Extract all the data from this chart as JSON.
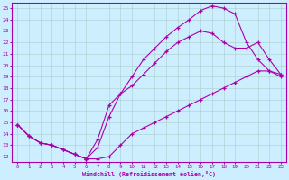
{
  "xlabel": "Windchill (Refroidissement éolien,°C)",
  "bg_color": "#cceeff",
  "line_color": "#aa00aa",
  "grid_color": "#aacccc",
  "xlim": [
    -0.5,
    23.5
  ],
  "ylim": [
    11.5,
    25.5
  ],
  "xticks": [
    0,
    1,
    2,
    3,
    4,
    5,
    6,
    7,
    8,
    9,
    10,
    11,
    12,
    13,
    14,
    15,
    16,
    17,
    18,
    19,
    20,
    21,
    22,
    23
  ],
  "yticks": [
    12,
    13,
    14,
    15,
    16,
    17,
    18,
    19,
    20,
    21,
    22,
    23,
    24,
    25
  ],
  "line1_x": [
    0,
    1,
    2,
    3,
    4,
    5,
    6,
    7,
    8,
    9,
    10,
    11,
    12,
    13,
    14,
    15,
    16,
    17,
    18,
    19,
    20,
    21,
    22,
    23
  ],
  "line1_y": [
    14.8,
    13.8,
    13.2,
    13.0,
    12.6,
    12.2,
    11.8,
    12.8,
    15.5,
    17.5,
    19.0,
    20.5,
    21.5,
    22.5,
    23.3,
    24.0,
    24.8,
    25.2,
    25.0,
    24.5,
    22.0,
    20.5,
    19.5,
    19.0
  ],
  "line2_x": [
    0,
    1,
    2,
    3,
    4,
    5,
    6,
    7,
    8,
    9,
    10,
    11,
    12,
    13,
    14,
    15,
    16,
    17,
    18,
    19,
    20,
    21,
    22,
    23
  ],
  "line2_y": [
    14.8,
    13.8,
    13.2,
    13.0,
    12.6,
    12.2,
    11.8,
    13.5,
    16.5,
    17.5,
    18.2,
    19.2,
    20.2,
    21.2,
    22.0,
    22.5,
    23.0,
    22.8,
    22.0,
    21.5,
    21.5,
    22.0,
    20.5,
    19.2
  ],
  "line3_x": [
    0,
    1,
    2,
    3,
    4,
    5,
    6,
    7,
    8,
    9,
    10,
    11,
    12,
    13,
    14,
    15,
    16,
    17,
    18,
    19,
    20,
    21,
    22,
    23
  ],
  "line3_y": [
    14.8,
    13.8,
    13.2,
    13.0,
    12.6,
    12.2,
    11.8,
    11.8,
    12.0,
    13.0,
    14.0,
    14.5,
    15.0,
    15.5,
    16.0,
    16.5,
    17.0,
    17.5,
    18.0,
    18.5,
    19.0,
    19.5,
    19.5,
    19.2
  ]
}
